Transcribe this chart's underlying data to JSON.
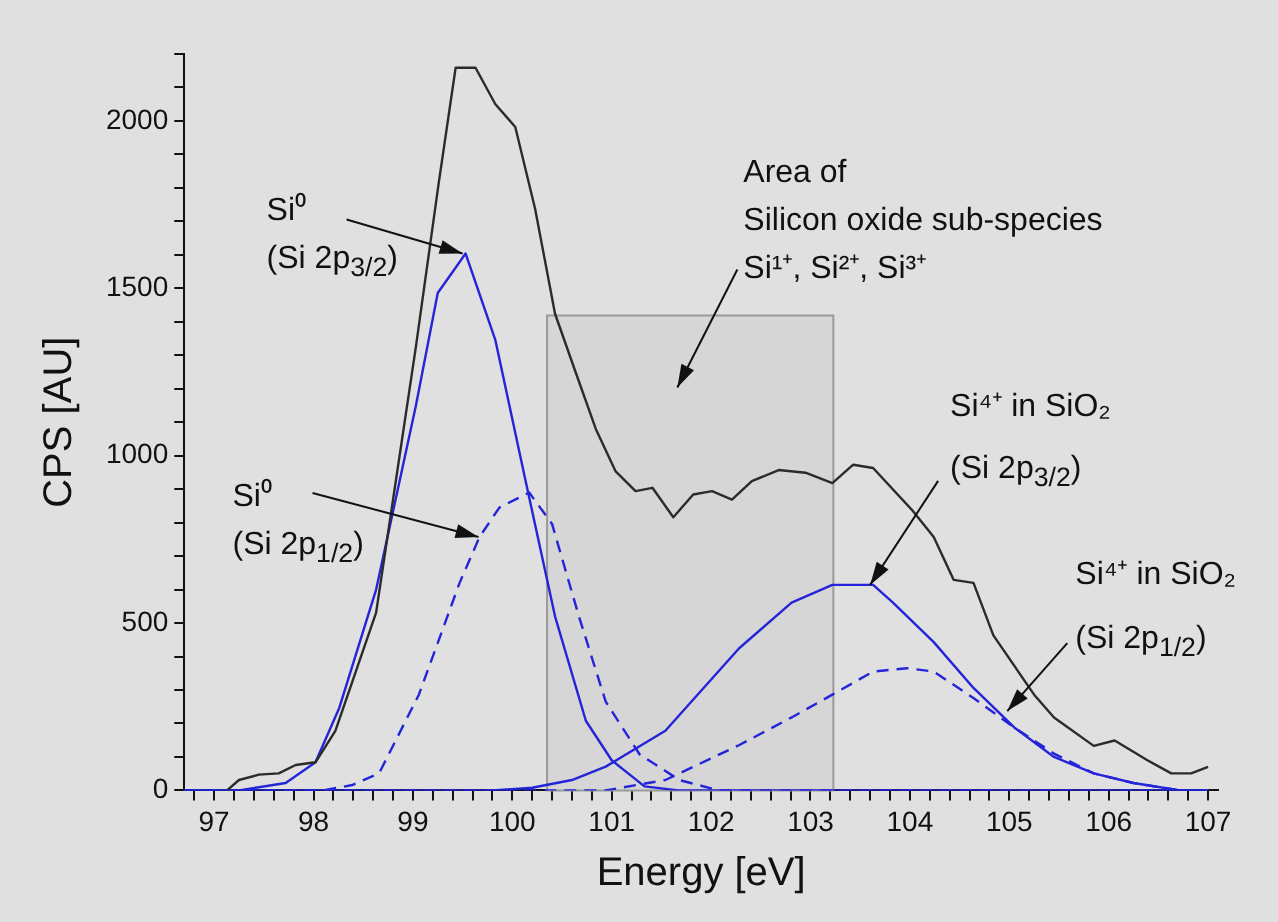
{
  "chart_data": {
    "type": "line",
    "xlabel": "Energy [eV]",
    "ylabel": "CPS [AU]",
    "xlim": [
      96.7,
      107.1
    ],
    "ylim": [
      0,
      2200
    ],
    "xticks": [
      {
        "value": 96.8,
        "label": null
      },
      97,
      {
        "value": 97.2,
        "label": null
      },
      {
        "value": 97.4,
        "label": null
      },
      {
        "value": 97.6,
        "label": null
      },
      {
        "value": 97.8,
        "label": null
      },
      98,
      {
        "value": 98.2,
        "label": null
      },
      {
        "value": 98.4,
        "label": null
      },
      {
        "value": 98.6,
        "label": null
      },
      {
        "value": 98.8,
        "label": null
      },
      99,
      {
        "value": 99.2,
        "label": null
      },
      {
        "value": 99.4,
        "label": null
      },
      {
        "value": 99.6,
        "label": null
      },
      {
        "value": 99.8,
        "label": null
      },
      100,
      {
        "value": 100.2,
        "label": null
      },
      {
        "value": 100.4,
        "label": null
      },
      {
        "value": 100.6,
        "label": null
      },
      {
        "value": 100.8,
        "label": null
      },
      101,
      {
        "value": 101.2,
        "label": null
      },
      {
        "value": 101.4,
        "label": null
      },
      {
        "value": 101.6,
        "label": null
      },
      {
        "value": 101.8,
        "label": null
      },
      102,
      {
        "value": 102.2,
        "label": null
      },
      {
        "value": 102.4,
        "label": null
      },
      {
        "value": 102.6,
        "label": null
      },
      {
        "value": 102.8,
        "label": null
      },
      103,
      {
        "value": 103.2,
        "label": null
      },
      {
        "value": 103.4,
        "label": null
      },
      {
        "value": 103.6,
        "label": null
      },
      {
        "value": 103.8,
        "label": null
      },
      104,
      {
        "value": 104.2,
        "label": null
      },
      {
        "value": 104.4,
        "label": null
      },
      {
        "value": 104.6,
        "label": null
      },
      {
        "value": 104.8,
        "label": null
      },
      105,
      {
        "value": 105.2,
        "label": null
      },
      {
        "value": 105.4,
        "label": null
      },
      {
        "value": 105.6,
        "label": null
      },
      {
        "value": 105.8,
        "label": null
      },
      106,
      {
        "value": 106.2,
        "label": null
      },
      {
        "value": 106.4,
        "label": null
      },
      {
        "value": 106.6,
        "label": null
      },
      {
        "value": 106.8,
        "label": null
      },
      107
    ],
    "yticks": [
      0,
      {
        "value": 100,
        "label": null
      },
      {
        "value": 200,
        "label": null
      },
      {
        "value": 300,
        "label": null
      },
      {
        "value": 400,
        "label": null
      },
      500,
      {
        "value": 600,
        "label": null
      },
      {
        "value": 700,
        "label": null
      },
      {
        "value": 800,
        "label": null
      },
      {
        "value": 900,
        "label": null
      },
      1000,
      {
        "value": 1100,
        "label": null
      },
      {
        "value": 1200,
        "label": null
      },
      {
        "value": 1300,
        "label": null
      },
      {
        "value": 1400,
        "label": null
      },
      1500,
      {
        "value": 1600,
        "label": null
      },
      {
        "value": 1700,
        "label": null
      },
      {
        "value": 1800,
        "label": null
      },
      {
        "value": 1900,
        "label": null
      },
      2000,
      {
        "value": 2100,
        "label": null
      },
      {
        "value": 2200,
        "label": null
      }
    ],
    "grid": false,
    "legend": false,
    "marker": "none",
    "series": [
      {
        "color": "#2b2b2b",
        "line_style": "solid",
        "x": [
          97.13,
          97.25,
          97.45,
          97.65,
          97.82,
          98.02,
          98.22,
          98.63,
          99.03,
          99.26,
          99.43,
          99.63,
          99.83,
          100.03,
          100.23,
          100.43,
          100.64,
          100.84,
          101.04,
          101.24,
          101.41,
          101.62,
          101.82,
          102.01,
          102.21,
          102.41,
          102.68,
          102.95,
          103.22,
          103.43,
          103.63,
          104.03,
          104.24,
          104.44,
          104.64,
          104.84,
          105.25,
          105.45,
          105.85,
          106.06,
          106.39,
          106.63,
          106.83,
          107.0
        ],
        "values": [
          0,
          31,
          47,
          51,
          76,
          84,
          178,
          531,
          1325,
          1815,
          2159,
          2159,
          2050,
          1982,
          1737,
          1424,
          1247,
          1080,
          953,
          894,
          904,
          816,
          884,
          894,
          869,
          924,
          957,
          949,
          918,
          973,
          963,
          835,
          757,
          629,
          620,
          463,
          286,
          218,
          133,
          149,
          90,
          51,
          51,
          70
        ]
      },
      {
        "color": "#2424d8",
        "line_style": "solid",
        "x": [
          96.7,
          97.25,
          97.72,
          98.02,
          98.26,
          98.63,
          99.03,
          99.25,
          99.53,
          99.83,
          100.14,
          100.43,
          100.74,
          101.0,
          101.33,
          101.67,
          107.0
        ],
        "values": [
          0,
          0,
          22,
          84,
          247,
          600,
          1149,
          1486,
          1604,
          1345,
          916,
          520,
          208,
          90,
          12,
          0,
          0
        ]
      },
      {
        "color": "#2424d8",
        "line_style": "dashed",
        "x": [
          96.7,
          98.1,
          98.39,
          98.66,
          99.06,
          99.47,
          99.67,
          99.87,
          100.07,
          100.17,
          100.4,
          100.67,
          100.94,
          101.28,
          101.68,
          102.08,
          107.0
        ],
        "values": [
          0,
          0,
          16,
          51,
          286,
          620,
          757,
          845,
          875,
          890,
          796,
          520,
          265,
          108,
          31,
          0,
          0
        ]
      },
      {
        "color": "#2424d8",
        "line_style": "solid",
        "x": [
          96.7,
          99.8,
          100.2,
          100.6,
          100.94,
          101.54,
          102.28,
          102.81,
          103.22,
          103.63,
          103.83,
          104.24,
          104.64,
          105.05,
          105.45,
          105.85,
          106.25,
          106.72,
          107.0
        ],
        "values": [
          0,
          0,
          8,
          31,
          71,
          178,
          424,
          561,
          614,
          614,
          561,
          443,
          306,
          188,
          100,
          51,
          22,
          0,
          0
        ]
      },
      {
        "color": "#2424d8",
        "line_style": "dashed",
        "x": [
          96.7,
          100.94,
          101.54,
          102.28,
          102.81,
          103.22,
          103.63,
          103.97,
          104.24,
          104.64,
          105.05,
          105.45,
          105.85,
          106.25,
          106.72,
          107.0
        ],
        "values": [
          0,
          0,
          31,
          135,
          218,
          286,
          355,
          365,
          355,
          276,
          188,
          110,
          51,
          22,
          0,
          0
        ]
      }
    ],
    "bands": [
      {
        "axis": "x",
        "from": 100.35,
        "to": 103.23,
        "label": "Area of\nSilicon oxide sub-species\nSi¹⁺, Si²⁺, Si³⁺",
        "color": "#d6d6d6"
      }
    ],
    "annotations": [
      {
        "text": "Si⁰\n(Si 2p$_{3/2}$)",
        "x": 99.5,
        "y": 1604
      },
      {
        "text": "Si⁰\n(Si 2p$_{1/2}$)",
        "x": 99.66,
        "y": 757
      },
      {
        "text": "Si⁴⁺ in SiO₂\n(Si 2p$_{3/2}$)",
        "x": 103.6,
        "y": 614
      },
      {
        "text": "Si⁴⁺ in SiO₂\n(Si 2p$_{1/2}$)",
        "x": 104.98,
        "y": 237
      }
    ]
  }
}
